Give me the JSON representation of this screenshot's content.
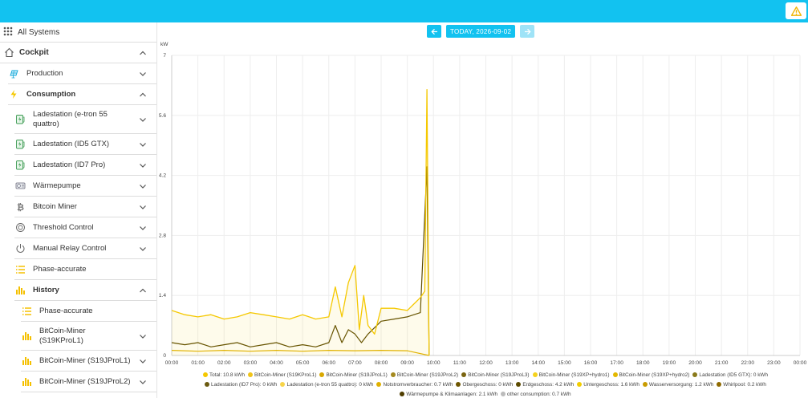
{
  "topbar": {
    "color": "#12c2f0",
    "warning_icon": "warning-triangle-icon"
  },
  "sidebar": {
    "all_systems": "All Systems",
    "items": [
      {
        "label": "Cockpit",
        "icon": "home-icon",
        "level": 0,
        "bold": true,
        "chevron": "up"
      },
      {
        "label": "Production",
        "icon": "solar-panel-icon",
        "level": 1,
        "bold": false,
        "chevron": "down"
      },
      {
        "label": "Consumption",
        "icon": "lightning-icon",
        "level": 1,
        "bold": true,
        "chevron": "up"
      },
      {
        "label": "Ladestation (e-tron 55 quattro)",
        "icon": "charging-station-icon",
        "level": 2,
        "bold": false,
        "chevron": "down"
      },
      {
        "label": "Ladestation (ID5 GTX)",
        "icon": "charging-station-icon",
        "level": 2,
        "bold": false,
        "chevron": "down"
      },
      {
        "label": "Ladestation (ID7 Pro)",
        "icon": "charging-station-icon",
        "level": 2,
        "bold": false,
        "chevron": "down"
      },
      {
        "label": "Wärmepumpe",
        "icon": "heat-pump-icon",
        "level": 2,
        "bold": false,
        "chevron": "down"
      },
      {
        "label": "Bitcoin Miner",
        "icon": "bitcoin-icon",
        "level": 2,
        "bold": false,
        "chevron": "down"
      },
      {
        "label": "Threshold Control",
        "icon": "threshold-icon",
        "level": 2,
        "bold": false,
        "chevron": "down"
      },
      {
        "label": "Manual Relay Control",
        "icon": "power-icon",
        "level": 2,
        "bold": false,
        "chevron": "down"
      },
      {
        "label": "Phase-accurate",
        "icon": "list-icon",
        "level": 2,
        "bold": false,
        "chevron": ""
      },
      {
        "label": "History",
        "icon": "bar-chart-icon",
        "level": 2,
        "bold": true,
        "chevron": "up"
      },
      {
        "label": "Phase-accurate",
        "icon": "list-icon",
        "level": 3,
        "bold": false,
        "chevron": ""
      },
      {
        "label": "BitCoin-Miner (S19KProL1)",
        "icon": "bar-chart-icon",
        "level": 3,
        "bold": false,
        "chevron": "down"
      },
      {
        "label": "BitCoin-Miner (S19JProL1)",
        "icon": "bar-chart-icon",
        "level": 3,
        "bold": false,
        "chevron": "down"
      },
      {
        "label": "BitCoin-Miner (S19JProL2)",
        "icon": "bar-chart-icon",
        "level": 3,
        "bold": false,
        "chevron": "down"
      }
    ]
  },
  "nav": {
    "prev_icon": "arrow-left-icon",
    "date_label": "TODAY, 2026-09-02",
    "next_icon": "arrow-right-icon"
  },
  "chart_data": {
    "type": "line",
    "ylabel": "kW",
    "ylim": [
      0,
      7
    ],
    "yticks": [
      "0",
      "1.4",
      "2.8",
      "4.2",
      "5.6",
      "7"
    ],
    "xlim": [
      "00:00",
      "24:00"
    ],
    "xticks": [
      "00:00",
      "01:00",
      "02:00",
      "03:00",
      "04:00",
      "05:00",
      "06:00",
      "07:00",
      "08:00",
      "09:00",
      "10:00",
      "11:00",
      "12:00",
      "13:00",
      "14:00",
      "15:00",
      "16:00",
      "17:00",
      "18:00",
      "19:00",
      "20:00",
      "21:00",
      "22:00",
      "23:00",
      "00:00"
    ],
    "grid": true,
    "legend_position": "bottom",
    "series": [
      {
        "name": "Total: 10.8 kWh",
        "color": "#f5c800",
        "x": [
          "00:00",
          "00:30",
          "01:00",
          "01:30",
          "02:00",
          "02:30",
          "03:00",
          "03:30",
          "04:00",
          "04:30",
          "05:00",
          "05:30",
          "06:00",
          "06:15",
          "06:30",
          "06:45",
          "07:00",
          "07:10",
          "07:20",
          "07:30",
          "07:45",
          "08:00",
          "08:30",
          "09:00",
          "09:15",
          "09:30",
          "09:40",
          "09:45",
          "09:50"
        ],
        "y": [
          1.05,
          0.95,
          0.9,
          0.95,
          0.85,
          0.9,
          1.0,
          0.95,
          0.9,
          0.85,
          0.95,
          0.85,
          0.9,
          1.6,
          0.9,
          1.7,
          2.1,
          0.6,
          1.4,
          0.7,
          0.5,
          1.1,
          1.1,
          1.05,
          1.2,
          1.35,
          1.5,
          6.2,
          0.0
        ]
      },
      {
        "name": "BitCoin-Miner (S19KProL1)",
        "color": "#f0c419",
        "x": [],
        "y": []
      },
      {
        "name": "BitCoin-Miner (S19JProL1)",
        "color": "#d9a800",
        "x": [],
        "y": []
      },
      {
        "name": "BitCoin-Miner (S19JProL2)",
        "color": "#a58a20",
        "x": [],
        "y": []
      },
      {
        "name": "BitCoin-Miner (S19JProL3)",
        "color": "#7a6410",
        "x": [],
        "y": []
      },
      {
        "name": "BitCoin-Miner (S19XP+hydro1)",
        "color": "#f5d21e",
        "x": [],
        "y": []
      },
      {
        "name": "BitCoin-Miner (S19XP+hydro2)",
        "color": "#e3b800",
        "x": [],
        "y": []
      },
      {
        "name": "Ladestation (ID5 GTX): 0 kWh",
        "color": "#8a7a1a",
        "x": [],
        "y": []
      },
      {
        "name": "Ladestation (ID7 Pro): 0 kWh",
        "color": "#6b5a10",
        "x": [],
        "y": []
      },
      {
        "name": "Ladestation (e-tron 55 quattro): 0 kWh",
        "color": "#f7d44a",
        "x": [],
        "y": []
      },
      {
        "name": "Notstromverbraucher: 0.7 kWh",
        "color": "#e0b000",
        "x": [
          "00:00",
          "01:00",
          "02:00",
          "03:00",
          "04:00",
          "05:00",
          "06:00",
          "07:00",
          "08:00",
          "09:00",
          "09:50"
        ],
        "y": [
          0.12,
          0.1,
          0.12,
          0.1,
          0.12,
          0.1,
          0.12,
          0.11,
          0.12,
          0.11,
          0.0
        ]
      },
      {
        "name": "Obergeschoss: 0 kWh",
        "color": "#6e5500",
        "x": [],
        "y": []
      },
      {
        "name": "Erdgeschoss: 4.2 kWh",
        "color": "#5c4a00",
        "x": [
          "00:00",
          "00:30",
          "01:00",
          "01:30",
          "02:00",
          "02:30",
          "03:00",
          "03:30",
          "04:00",
          "04:30",
          "05:00",
          "05:30",
          "06:00",
          "06:15",
          "06:30",
          "06:45",
          "07:00",
          "07:15",
          "07:30",
          "08:00",
          "08:30",
          "09:00",
          "09:15",
          "09:30",
          "09:45",
          "09:50"
        ],
        "y": [
          0.3,
          0.25,
          0.3,
          0.2,
          0.25,
          0.3,
          0.2,
          0.25,
          0.3,
          0.2,
          0.25,
          0.2,
          0.3,
          0.7,
          0.3,
          0.6,
          0.5,
          0.3,
          0.5,
          0.8,
          0.85,
          0.9,
          0.95,
          1.0,
          4.4,
          0.0
        ]
      },
      {
        "name": "Untergeschoss: 1.6 kWh",
        "color": "#f2cd00",
        "x": [],
        "y": []
      },
      {
        "name": "Wasserversorgung: 1.2 kWh",
        "color": "#c99c00",
        "x": [],
        "y": []
      },
      {
        "name": "Whirlpool: 0.2 kWh",
        "color": "#8f6a00",
        "x": [],
        "y": []
      },
      {
        "name": "Wärmepumpe & Klimaanlagen: 2.1 kWh",
        "color": "#4f3d00",
        "x": [],
        "y": []
      },
      {
        "name": "other consumption: 0.7 kWh",
        "color": "#bbbbbb",
        "x": [],
        "y": []
      }
    ]
  }
}
